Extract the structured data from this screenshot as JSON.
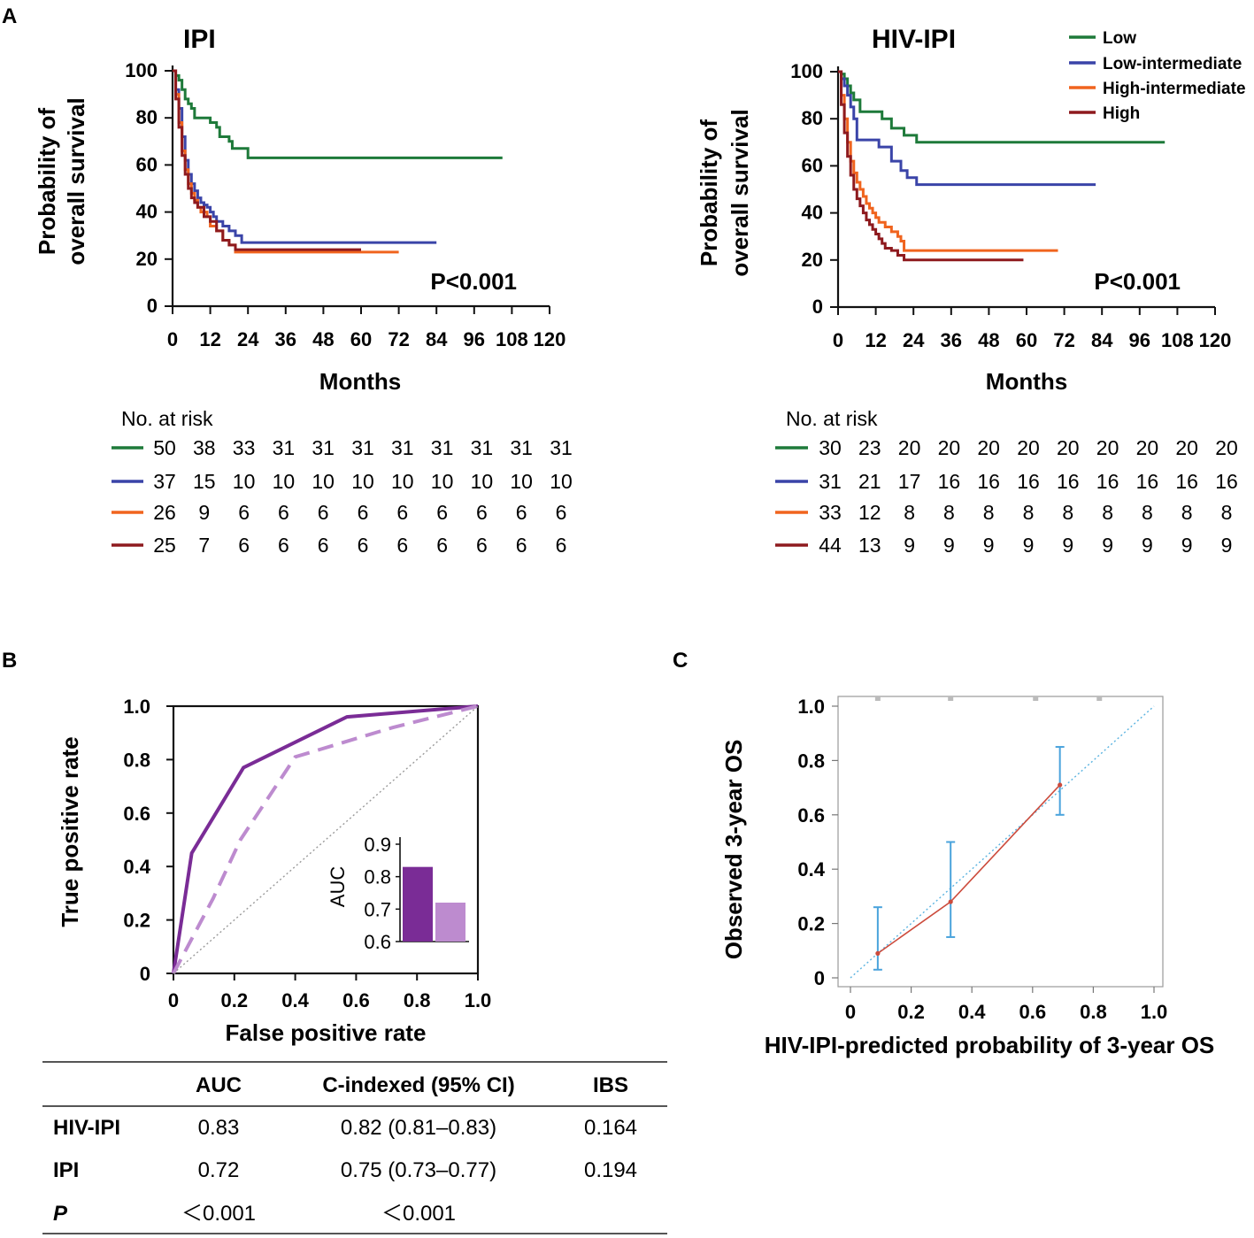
{
  "panels": {
    "a": "A",
    "b": "B",
    "c": "C"
  },
  "colors": {
    "low": "#1e7a3a",
    "low_intermediate": "#3a44a8",
    "high_intermediate": "#f0641e",
    "high": "#8e1a1e",
    "roc_hiv_ipi": "#7a2c96",
    "roc_ipi": "#bd8bcf",
    "cal_line": "#cc4b3c",
    "cal_err": "#4aa3dc",
    "cal_ref": "#5ab3e0"
  },
  "km_common": {
    "xlabel": "Months",
    "ylabel_line1": "Probability of",
    "ylabel_line2": "overall survival",
    "xticks": [
      "0",
      "12",
      "24",
      "36",
      "48",
      "60",
      "72",
      "84",
      "96",
      "108",
      "120"
    ],
    "yticks": [
      "0",
      "20",
      "40",
      "60",
      "80",
      "100"
    ],
    "risk_header": "No. at risk",
    "legend": [
      "Low",
      "Low-intermediate",
      "High-intermediate",
      "High"
    ]
  },
  "chart_data": [
    {
      "type": "line",
      "subtype": "kaplan-meier",
      "title": "IPI",
      "xlabel": "Months",
      "ylabel": "Probability of overall survival",
      "xlim": [
        0,
        120
      ],
      "ylim": [
        0,
        100
      ],
      "p_value": "P<0.001",
      "series": [
        {
          "name": "Low",
          "color_key": "low",
          "x": [
            0,
            1,
            2,
            3,
            4,
            5,
            6,
            7,
            9,
            12,
            14,
            15,
            18,
            19,
            24,
            105
          ],
          "y": [
            100,
            98,
            96,
            92,
            88,
            86,
            84,
            80,
            80,
            78,
            76,
            72,
            70,
            67,
            63,
            63
          ]
        },
        {
          "name": "Low-intermediate",
          "color_key": "low_intermediate",
          "x": [
            0,
            1,
            2,
            3,
            4,
            5,
            6,
            7,
            8,
            9,
            10,
            11,
            12,
            13,
            14,
            16,
            18,
            20,
            22,
            84
          ],
          "y": [
            100,
            92,
            84,
            72,
            62,
            56,
            52,
            49,
            46,
            44,
            43,
            42,
            40,
            38,
            36,
            34,
            32,
            30,
            27,
            27
          ]
        },
        {
          "name": "High-intermediate",
          "color_key": "high_intermediate",
          "x": [
            0,
            1,
            2,
            3,
            4,
            5,
            6,
            7,
            8,
            9,
            11,
            12,
            14,
            16,
            18,
            20,
            72
          ],
          "y": [
            100,
            90,
            78,
            66,
            58,
            52,
            48,
            45,
            42,
            40,
            38,
            34,
            32,
            28,
            26,
            23,
            23
          ]
        },
        {
          "name": "High",
          "color_key": "high",
          "x": [
            0,
            1,
            2,
            3,
            4,
            5,
            6,
            7,
            8,
            10,
            12,
            14,
            16,
            18,
            20,
            60
          ],
          "y": [
            100,
            88,
            76,
            64,
            56,
            50,
            46,
            44,
            42,
            38,
            36,
            32,
            28,
            26,
            24,
            24
          ]
        }
      ],
      "at_risk": {
        "header": "No. at risk",
        "rows": [
          {
            "group": "Low",
            "values": [
              "50",
              "38",
              "33",
              "31",
              "31",
              "31",
              "31",
              "31",
              "31",
              "31",
              "31"
            ]
          },
          {
            "group": "Low-intermediate",
            "values": [
              "37",
              "15",
              "10",
              "10",
              "10",
              "10",
              "10",
              "10",
              "10",
              "10",
              "10"
            ]
          },
          {
            "group": "High-intermediate",
            "values": [
              "26",
              "9",
              "6",
              "6",
              "6",
              "6",
              "6",
              "6",
              "6",
              "6",
              "6"
            ]
          },
          {
            "group": "High",
            "values": [
              "25",
              "7",
              "6",
              "6",
              "6",
              "6",
              "6",
              "6",
              "6",
              "6",
              "6"
            ]
          }
        ]
      }
    },
    {
      "type": "line",
      "subtype": "kaplan-meier",
      "title": "HIV-IPI",
      "xlabel": "Months",
      "ylabel": "Probability of overall survival",
      "xlim": [
        0,
        120
      ],
      "ylim": [
        0,
        100
      ],
      "p_value": "P<0.001",
      "series": [
        {
          "name": "Low",
          "color_key": "low",
          "x": [
            0,
            1,
            2,
            3,
            4,
            5,
            7,
            12,
            14,
            17,
            21,
            25,
            104
          ],
          "y": [
            100,
            99,
            97,
            94,
            91,
            88,
            83,
            83,
            80,
            76,
            73,
            70,
            70
          ]
        },
        {
          "name": "Low-intermediate",
          "color_key": "low_intermediate",
          "x": [
            0,
            1,
            2,
            3,
            4,
            5,
            6,
            12,
            13,
            17,
            20,
            22,
            25,
            82
          ],
          "y": [
            100,
            97,
            94,
            90,
            85,
            80,
            71,
            71,
            68,
            62,
            58,
            55,
            52,
            52
          ]
        },
        {
          "name": "High-intermediate",
          "color_key": "high_intermediate",
          "x": [
            0,
            1,
            2,
            3,
            4,
            5,
            6,
            7,
            8,
            9,
            10,
            11,
            12,
            13,
            15,
            17,
            19,
            20,
            21,
            70
          ],
          "y": [
            100,
            90,
            80,
            70,
            62,
            57,
            53,
            50,
            47,
            44,
            42,
            40,
            38,
            36,
            34,
            32,
            30,
            28,
            24,
            24
          ]
        },
        {
          "name": "High",
          "color_key": "high",
          "x": [
            0,
            1,
            2,
            3,
            4,
            5,
            6,
            7,
            8,
            9,
            10,
            11,
            12,
            13,
            14,
            15,
            17,
            19,
            21,
            59
          ],
          "y": [
            100,
            86,
            74,
            64,
            56,
            50,
            46,
            43,
            40,
            37,
            35,
            33,
            31,
            29,
            27,
            25,
            24,
            22,
            20,
            20
          ]
        }
      ],
      "at_risk": {
        "header": "No. at risk",
        "rows": [
          {
            "group": "Low",
            "values": [
              "30",
              "23",
              "20",
              "20",
              "20",
              "20",
              "20",
              "20",
              "20",
              "20",
              "20"
            ]
          },
          {
            "group": "Low-intermediate",
            "values": [
              "31",
              "21",
              "17",
              "16",
              "16",
              "16",
              "16",
              "16",
              "16",
              "16",
              "16"
            ]
          },
          {
            "group": "High-intermediate",
            "values": [
              "33",
              "12",
              "8",
              "8",
              "8",
              "8",
              "8",
              "8",
              "8",
              "8",
              "8"
            ]
          },
          {
            "group": "High",
            "values": [
              "44",
              "13",
              "9",
              "9",
              "9",
              "9",
              "9",
              "9",
              "9",
              "9",
              "9"
            ]
          }
        ]
      }
    },
    {
      "type": "line",
      "subtype": "roc",
      "xlabel": "False positive rate",
      "ylabel": "True positive rate",
      "xlim": [
        0,
        1
      ],
      "ylim": [
        0,
        1
      ],
      "xticks": [
        "0",
        "0.2",
        "0.4",
        "0.6",
        "0.8",
        "1.0"
      ],
      "yticks": [
        "0",
        "0.2",
        "0.4",
        "0.6",
        "0.8",
        "1.0"
      ],
      "series": [
        {
          "name": "HIV-IPI",
          "style": "solid",
          "color_key": "roc_hiv_ipi",
          "x": [
            0,
            0.06,
            0.23,
            0.57,
            1.0
          ],
          "y": [
            0,
            0.45,
            0.77,
            0.96,
            1.0
          ]
        },
        {
          "name": "IPI",
          "style": "dashed",
          "color_key": "roc_ipi",
          "x": [
            0,
            0.13,
            0.22,
            0.4,
            0.72,
            1.0
          ],
          "y": [
            0,
            0.28,
            0.5,
            0.81,
            0.92,
            1.0
          ]
        },
        {
          "name": "Reference",
          "style": "dotted",
          "x": [
            0,
            1
          ],
          "y": [
            0,
            1
          ]
        }
      ],
      "inset": {
        "type": "bar",
        "ylabel": "AUC",
        "ylim": [
          0.6,
          0.9
        ],
        "yticks": [
          "0.9",
          "0.8",
          "0.7",
          "0.6"
        ],
        "categories": [
          "HIV-IPI",
          "IPI"
        ],
        "values": [
          0.83,
          0.72
        ]
      }
    },
    {
      "type": "scatter",
      "subtype": "calibration",
      "xlabel": "HIV-IPI-predicted probability of 3-year OS",
      "ylabel": "Observed 3-year OS",
      "xlim": [
        0,
        1
      ],
      "ylim": [
        0,
        1
      ],
      "xticks": [
        "0",
        "0.2",
        "0.4",
        "0.6",
        "0.8",
        "1.0"
      ],
      "yticks": [
        "0",
        "0.2",
        "0.4",
        "0.6",
        "0.8",
        "1.0"
      ],
      "points": [
        {
          "x": 0.09,
          "y": 0.09,
          "lo": 0.03,
          "hi": 0.26
        },
        {
          "x": 0.33,
          "y": 0.28,
          "lo": 0.15,
          "hi": 0.5
        },
        {
          "x": 0.69,
          "y": 0.71,
          "lo": 0.6,
          "hi": 0.85
        }
      ],
      "rug": [
        0.09,
        0.33,
        0.61,
        0.82
      ]
    }
  ],
  "metrics_table": {
    "headers": [
      "",
      "AUC",
      "C-indexed (95% CI)",
      "IBS"
    ],
    "rows": [
      [
        "HIV-IPI",
        "0.83",
        "0.82 (0.81–0.83)",
        "0.164"
      ],
      [
        "IPI",
        "0.72",
        "0.75 (0.73–0.77)",
        "0.194"
      ],
      [
        "P",
        "＜0.001",
        "＜0.001",
        ""
      ]
    ]
  }
}
